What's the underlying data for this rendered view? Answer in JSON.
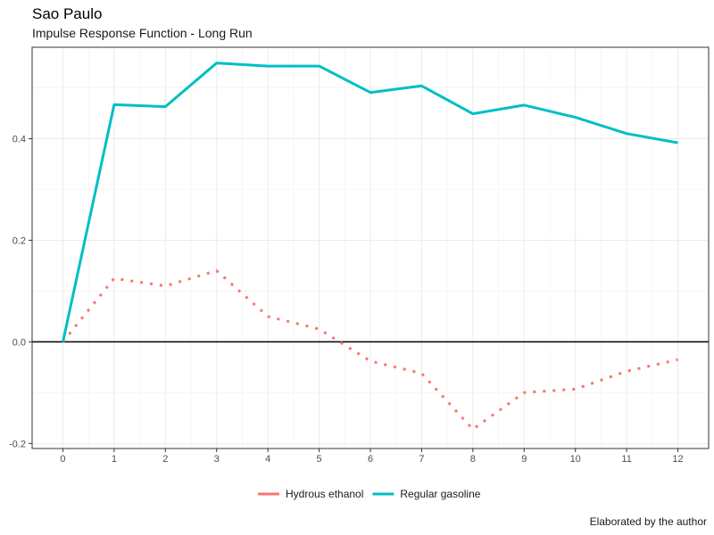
{
  "header": {
    "title": "Sao Paulo",
    "subtitle": "Impulse Response Function - Long Run"
  },
  "caption": "Elaborated by the author",
  "chart_data": {
    "type": "line",
    "title": "Sao Paulo",
    "subtitle": "Impulse Response Function - Long Run",
    "xlabel": "",
    "ylabel": "",
    "x": [
      0,
      1,
      2,
      3,
      4,
      5,
      6,
      7,
      8,
      9,
      10,
      11,
      12
    ],
    "xlim": [
      -0.6,
      12.6
    ],
    "ylim": [
      -0.21,
      0.58
    ],
    "x_ticks": [
      0,
      1,
      2,
      3,
      4,
      5,
      6,
      7,
      8,
      9,
      10,
      11,
      12
    ],
    "y_ticks": [
      -0.2,
      0.0,
      0.2,
      0.4
    ],
    "y_tick_labels": [
      "-0.2",
      "0.0",
      "0.2",
      "0.4"
    ],
    "reference_line": 0,
    "grid": true,
    "legend_position": "bottom",
    "series": [
      {
        "name": "Hydrous ethanol",
        "color": "#F8766D",
        "style": "dotted",
        "values": [
          0.0,
          0.125,
          0.11,
          0.14,
          0.05,
          0.025,
          -0.038,
          -0.062,
          -0.172,
          -0.1,
          -0.093,
          -0.058,
          -0.035
        ]
      },
      {
        "name": "Regular gasoline",
        "color": "#00BFC4",
        "style": "solid",
        "values": [
          0.0,
          0.467,
          0.463,
          0.549,
          0.543,
          0.543,
          0.491,
          0.504,
          0.449,
          0.466,
          0.442,
          0.41,
          0.392
        ]
      }
    ]
  }
}
